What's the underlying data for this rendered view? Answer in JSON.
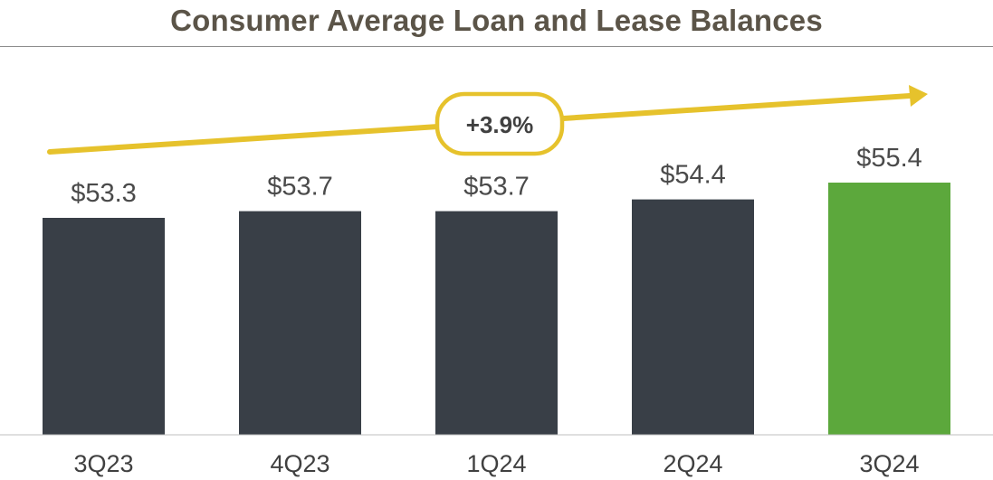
{
  "chart_data": {
    "type": "bar",
    "title": "Consumer Average Loan and Lease Balances",
    "categories": [
      "3Q23",
      "4Q23",
      "1Q24",
      "2Q24",
      "3Q24"
    ],
    "values": [
      53.3,
      53.7,
      53.7,
      54.4,
      55.4
    ],
    "value_labels": [
      "$53.3",
      "$53.7",
      "$53.7",
      "$54.4",
      "$55.4"
    ],
    "annotation": "+3.9%",
    "colors": {
      "bar": "#393f47",
      "highlight_bar": "#5ca83c",
      "arrow": "#e6c22c",
      "title": "#5b5448"
    },
    "highlight_index": 4,
    "grid": false,
    "legend": "none"
  }
}
